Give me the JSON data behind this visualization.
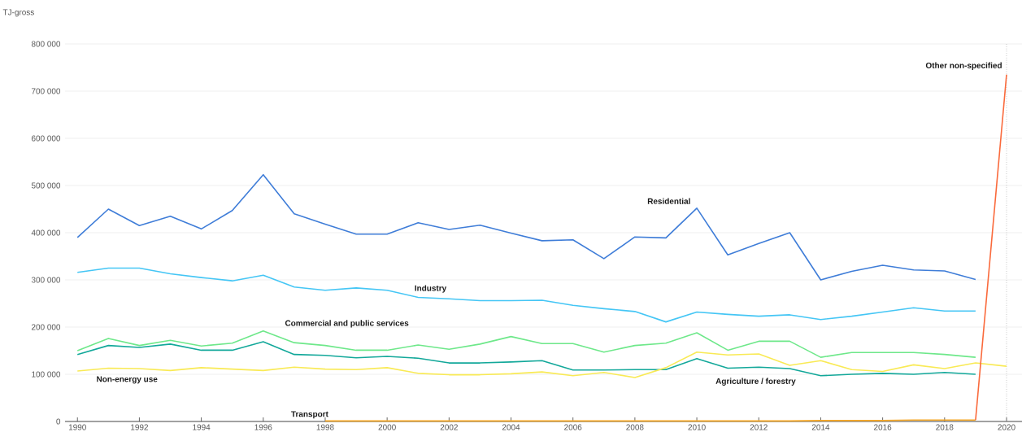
{
  "chart_data": {
    "type": "line",
    "ylabel": "TJ-gross",
    "x": [
      1990,
      1991,
      1992,
      1993,
      1994,
      1995,
      1996,
      1997,
      1998,
      1999,
      2000,
      2001,
      2002,
      2003,
      2004,
      2005,
      2006,
      2007,
      2008,
      2009,
      2010,
      2011,
      2012,
      2013,
      2014,
      2015,
      2016,
      2017,
      2018,
      2019,
      2020
    ],
    "series": [
      {
        "name": "Residential",
        "color": "#3f7dd8",
        "values": [
          390000,
          450000,
          415000,
          435000,
          408000,
          447000,
          523000,
          440000,
          418000,
          397000,
          397000,
          421000,
          407000,
          416000,
          399000,
          383000,
          385000,
          345000,
          391000,
          389000,
          452000,
          353000,
          377000,
          400000,
          300000,
          318000,
          331000,
          321000,
          319000,
          301000,
          null
        ]
      },
      {
        "name": "Industry",
        "color": "#45c6f5",
        "values": [
          316000,
          325000,
          325000,
          313000,
          305000,
          298000,
          310000,
          285000,
          278000,
          283000,
          278000,
          263000,
          260000,
          256000,
          256000,
          257000,
          246000,
          239000,
          233000,
          211000,
          232000,
          227000,
          223000,
          226000,
          216000,
          223000,
          232000,
          241000,
          234000,
          234000,
          null
        ]
      },
      {
        "name": "Commercial and public services",
        "color": "#6ee88a",
        "values": [
          150000,
          176000,
          161000,
          172000,
          160000,
          166000,
          192000,
          167000,
          161000,
          151000,
          151000,
          162000,
          153000,
          164000,
          180000,
          165000,
          165000,
          147000,
          161000,
          166000,
          188000,
          151000,
          170000,
          170000,
          136000,
          146000,
          146000,
          146000,
          142000,
          136000,
          null
        ]
      },
      {
        "name": "Agriculture / forestry",
        "color": "#13a89a",
        "values": [
          142000,
          161000,
          157000,
          164000,
          151000,
          151000,
          169000,
          142000,
          140000,
          135000,
          138000,
          134000,
          124000,
          124000,
          126000,
          129000,
          109000,
          109000,
          110000,
          110000,
          133000,
          113000,
          115000,
          112000,
          97000,
          100000,
          102000,
          100000,
          104000,
          100000,
          null
        ]
      },
      {
        "name": "Non-energy use",
        "color": "#f9ea55",
        "values": [
          107000,
          113000,
          112000,
          108000,
          114000,
          111000,
          108000,
          115000,
          111000,
          110000,
          114000,
          102000,
          99000,
          99000,
          101000,
          105000,
          97000,
          104000,
          93000,
          114000,
          147000,
          141000,
          143000,
          119000,
          129000,
          110000,
          106000,
          120000,
          112000,
          124000,
          117000
        ]
      },
      {
        "name": "Transport",
        "color": "#f5a623",
        "values": [
          null,
          null,
          null,
          null,
          null,
          null,
          null,
          null,
          1000,
          1000,
          1000,
          1000,
          1000,
          1000,
          1000,
          1000,
          1000,
          1000,
          1000,
          1000,
          1000,
          1000,
          1000,
          1000,
          2000,
          2000,
          2000,
          3000,
          3000,
          3000,
          null
        ]
      },
      {
        "name": "Other non-specified",
        "color": "#fa6a3c",
        "values": [
          null,
          null,
          null,
          null,
          null,
          null,
          null,
          null,
          null,
          null,
          null,
          null,
          null,
          null,
          null,
          null,
          null,
          null,
          null,
          null,
          null,
          null,
          null,
          null,
          null,
          null,
          null,
          null,
          null,
          3000,
          735000
        ]
      }
    ],
    "xlim": [
      1989.6,
      2020.5
    ],
    "xticks": [
      1990,
      1992,
      1994,
      1996,
      1998,
      2000,
      2002,
      2004,
      2006,
      2008,
      2010,
      2012,
      2014,
      2016,
      2018,
      2020
    ],
    "ylim": [
      0,
      800000
    ],
    "yticks": [
      {
        "value": 0,
        "label": "0"
      },
      {
        "value": 100000,
        "label": "100 000"
      },
      {
        "value": 200000,
        "label": "200 000"
      },
      {
        "value": 300000,
        "label": "300 000"
      },
      {
        "value": 400000,
        "label": "400 000"
      },
      {
        "value": 500000,
        "label": "500 000"
      },
      {
        "value": 600000,
        "label": "600 000"
      },
      {
        "value": 700000,
        "label": "700 000"
      },
      {
        "value": 800000,
        "label": "800 000"
      }
    ],
    "grid": "y",
    "legend": false,
    "marker": "none",
    "line_style": "solid",
    "ref_lines": [
      {
        "axis": "x",
        "value": 2020,
        "line_style": "dotted",
        "color": "#aaaaaa"
      }
    ]
  }
}
